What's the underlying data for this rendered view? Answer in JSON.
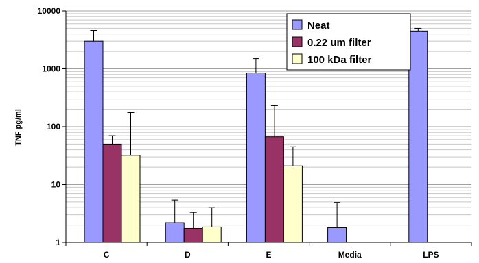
{
  "chart_data": {
    "type": "bar",
    "ylabel": "TNF pg/ml",
    "xlabel": "",
    "yscale": "log",
    "ylim": [
      1,
      10000
    ],
    "yticks": [
      1,
      10,
      100,
      1000,
      10000
    ],
    "ytick_labels": [
      "1",
      "10",
      "100",
      "1000",
      "10000"
    ],
    "grid": "horizontal",
    "legend_position": "top-right",
    "categories": [
      "C",
      "D",
      "E",
      "Media",
      "LPS"
    ],
    "series": [
      {
        "name": "Neat",
        "color": "#9999ff",
        "values": [
          3000,
          2.2,
          850,
          1.8,
          4500
        ],
        "error_upper": [
          4600,
          5.4,
          1500,
          4.9,
          5000
        ]
      },
      {
        "name": "0.22 um filter",
        "color": "#993366",
        "values": [
          50,
          1.75,
          67,
          null,
          null
        ],
        "error_upper": [
          70,
          3.3,
          230,
          null,
          null
        ]
      },
      {
        "name": "100 kDa filter",
        "color": "#ffffcc",
        "values": [
          32,
          1.85,
          21,
          null,
          null
        ],
        "error_upper": [
          175,
          4.0,
          45,
          null,
          null
        ]
      }
    ]
  }
}
